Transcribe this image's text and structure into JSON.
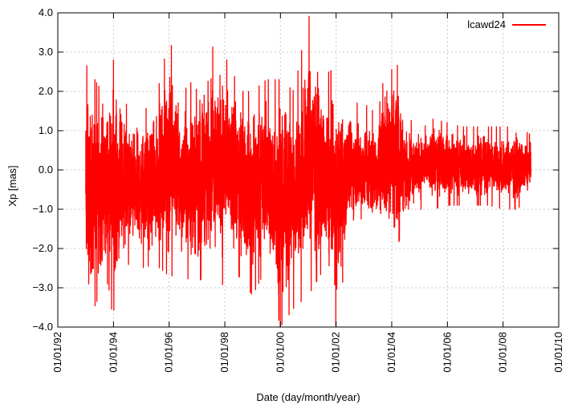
{
  "chart_data": {
    "type": "line",
    "xlabel": "Date (day/month/year)",
    "ylabel": "Xp [mas]",
    "x_tick_labels": [
      "01/01/92",
      "01/01/94",
      "01/01/96",
      "01/01/98",
      "01/01/00",
      "01/01/02",
      "01/01/04",
      "01/01/06",
      "01/01/08",
      "01/01/10"
    ],
    "xlim": [
      "1992-01-01",
      "2010-01-01"
    ],
    "y_tick_labels": [
      "-4.0",
      "-3.0",
      "-2.0",
      "-1.0",
      "0.0",
      "1.0",
      "2.0",
      "3.0",
      "4.0"
    ],
    "ylim": [
      -4.0,
      4.0
    ],
    "grid": true,
    "legend_position": "top-right",
    "series": [
      {
        "name": "lcawd24",
        "color": "#ff0000",
        "x_range": [
          "1993-01-01",
          "2008-12-31"
        ],
        "x": [
          "1993-01-01",
          "1993-07-01",
          "1994-01-01",
          "1994-07-01",
          "1995-01-01",
          "1995-07-01",
          "1996-01-01",
          "1996-07-01",
          "1997-01-01",
          "1997-07-01",
          "1998-01-01",
          "1998-07-01",
          "1999-01-01",
          "1999-07-01",
          "2000-01-01",
          "2000-07-01",
          "2001-01-01",
          "2001-07-01",
          "2002-01-01",
          "2002-07-01",
          "2003-01-01",
          "2003-07-01",
          "2004-01-01",
          "2004-07-01",
          "2005-01-01",
          "2005-07-01",
          "2006-01-01",
          "2006-07-01",
          "2007-01-01",
          "2007-07-01",
          "2008-01-01",
          "2008-07-01",
          "2008-12-31"
        ],
        "y_upper": [
          2.7,
          2.1,
          2.8,
          1.6,
          1.5,
          1.7,
          3.4,
          2.0,
          2.4,
          3.1,
          3.3,
          2.0,
          2.0,
          2.3,
          2.3,
          2.0,
          4.0,
          2.4,
          2.6,
          1.7,
          1.7,
          1.4,
          3.6,
          1.3,
          1.2,
          1.3,
          1.2,
          1.1,
          1.1,
          1.1,
          1.1,
          1.1,
          0.9
        ],
        "y_lower": [
          -4.0,
          -3.2,
          -3.6,
          -2.4,
          -2.5,
          -2.4,
          -2.7,
          -2.7,
          -2.9,
          -2.5,
          -3.0,
          -2.7,
          -3.2,
          -2.5,
          -4.0,
          -3.5,
          -3.2,
          -2.6,
          -4.0,
          -1.6,
          -1.6,
          -1.5,
          -2.4,
          -1.3,
          -1.0,
          -1.0,
          -0.9,
          -0.9,
          -0.9,
          -0.9,
          -1.0,
          -1.0,
          -0.7
        ]
      }
    ]
  }
}
